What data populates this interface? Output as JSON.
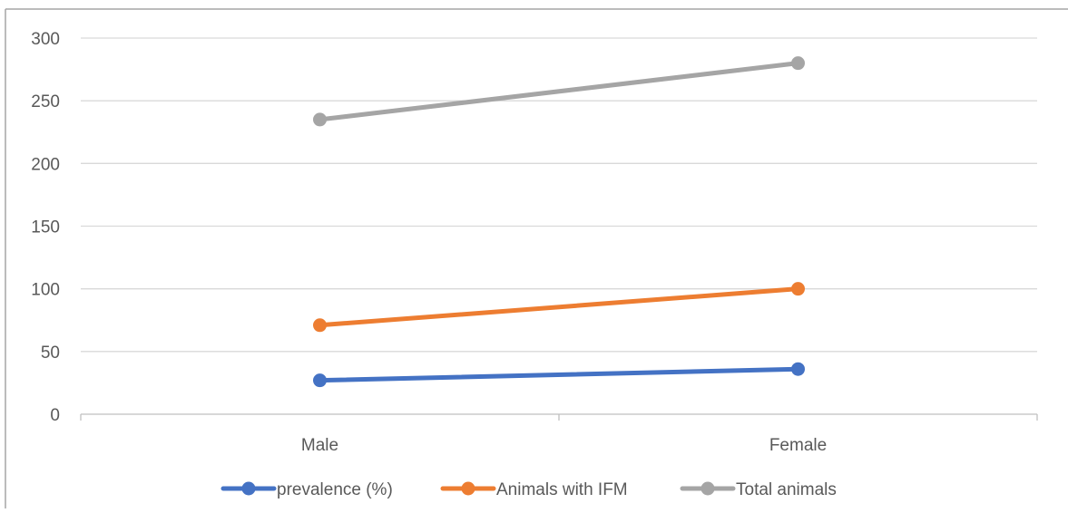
{
  "chart_data": {
    "type": "line",
    "title": "",
    "xlabel": "",
    "ylabel": "",
    "categories": [
      "Male",
      "Female"
    ],
    "ylim": [
      0,
      300
    ],
    "yticks": [
      0,
      50,
      100,
      150,
      200,
      250,
      300
    ],
    "grid": true,
    "legend": "bottom",
    "series": [
      {
        "name": "prevalence (%)",
        "color": "#4472C4",
        "values": [
          27,
          36
        ]
      },
      {
        "name": "Animals with IFM",
        "color": "#ED7D31",
        "values": [
          71,
          100
        ]
      },
      {
        "name": "Total animals",
        "color": "#A5A5A5",
        "values": [
          235,
          280
        ]
      }
    ]
  }
}
